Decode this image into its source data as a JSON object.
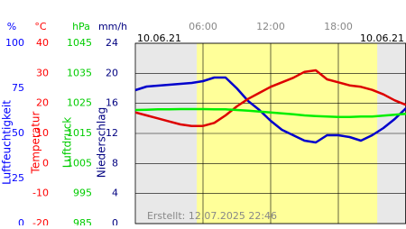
{
  "chart_data": {
    "type": "line",
    "date_left": "10.06.21",
    "date_right": "10.06.21",
    "footer": "Erstellt: 12.07.2025 22:46",
    "xlim": [
      0,
      24
    ],
    "xticks": [
      {
        "value": 6,
        "label": "06:00"
      },
      {
        "value": 12,
        "label": "12:00"
      },
      {
        "value": 18,
        "label": "18:00"
      }
    ],
    "daylight": [
      5.45,
      21.45
    ],
    "grid": true,
    "axes": [
      {
        "unit": "%",
        "label": "Luftfeuchtigkeit",
        "color": "#0000ff",
        "lim": [
          0,
          100
        ],
        "ticks": [
          0,
          25,
          50,
          75,
          100
        ]
      },
      {
        "unit": "°C",
        "label": "Temperatur",
        "color": "#ff0000",
        "lim": [
          -20,
          40
        ],
        "ticks": [
          -20,
          -10,
          0,
          10,
          20,
          30,
          40
        ]
      },
      {
        "unit": "hPa",
        "label": "Luftdruck",
        "color": "#00cc00",
        "lim": [
          985,
          1045
        ],
        "ticks": [
          985,
          995,
          1005,
          1015,
          1025,
          1035,
          1045
        ]
      },
      {
        "unit": "mm/h",
        "label": "Niederschlag",
        "color": "#000080",
        "lim": [
          0,
          24
        ],
        "ticks": [
          0,
          4,
          8,
          12,
          16,
          20,
          24
        ]
      }
    ],
    "x": [
      0,
      1,
      2,
      3,
      4,
      5,
      6,
      7,
      8,
      9,
      10,
      11,
      12,
      13,
      14,
      15,
      16,
      17,
      18,
      19,
      20,
      21,
      22,
      23,
      24
    ],
    "series": [
      {
        "name": "Luftfeuchtigkeit",
        "axis": 0,
        "color": "#0000cc",
        "values": [
          74,
          76,
          76.5,
          77,
          77.5,
          78,
          79,
          81,
          81,
          75,
          68,
          63,
          57,
          52,
          49,
          46,
          45,
          49,
          49,
          48,
          46,
          49,
          53,
          58,
          64
        ]
      },
      {
        "name": "Temperatur",
        "axis": 1,
        "color": "#dd0000",
        "values": [
          17,
          16,
          15,
          14,
          13,
          12.5,
          12.5,
          13.5,
          16,
          19,
          21.5,
          23.5,
          25.5,
          27,
          28.5,
          30.5,
          31,
          28,
          27,
          26,
          25.5,
          24.5,
          23,
          21,
          19.5
        ]
      },
      {
        "name": "Luftdruck",
        "axis": 2,
        "color": "#00ee00",
        "values": [
          1022.8,
          1022.9,
          1023,
          1023,
          1023.1,
          1023.1,
          1023.1,
          1023,
          1023,
          1022.8,
          1022.6,
          1022.3,
          1022,
          1021.7,
          1021.4,
          1021,
          1020.8,
          1020.6,
          1020.5,
          1020.5,
          1020.6,
          1020.6,
          1020.9,
          1021.2,
          1021.5
        ]
      }
    ]
  }
}
